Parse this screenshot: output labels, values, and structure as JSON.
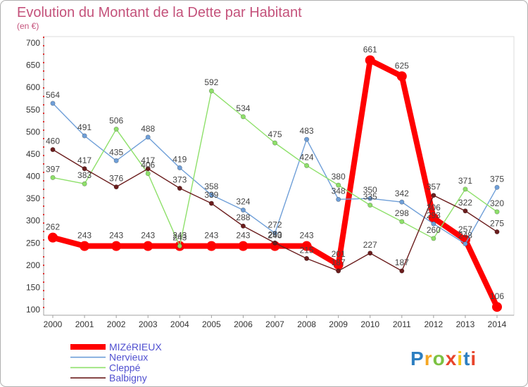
{
  "chart_data": {
    "type": "line",
    "title": "Evolution du Montant de la Dette par Habitant",
    "subtitle": "(en €)",
    "x": [
      "2000",
      "2001",
      "2002",
      "2003",
      "2004",
      "2005",
      "2006",
      "2007",
      "2008",
      "2009",
      "2010",
      "2011",
      "2012",
      "2013",
      "2014"
    ],
    "ylim": [
      100,
      700
    ],
    "yticks": [
      700,
      650,
      600,
      550,
      500,
      450,
      400,
      350,
      300,
      250,
      200,
      150,
      100
    ],
    "grid": false,
    "legend_position": "bottom-left",
    "series": [
      {
        "name": "MIZéRIEUX",
        "color": "#ff0000",
        "values": [
          262,
          243,
          243,
          243,
          243,
          243,
          243,
          243,
          243,
          201,
          661,
          625,
          306,
          257,
          106
        ]
      },
      {
        "name": "Nervieux",
        "color": "#6f9fd8",
        "values": [
          564,
          491,
          435,
          488,
          419,
          358,
          324,
          272,
          483,
          348,
          350,
          342,
          293,
          248,
          375
        ]
      },
      {
        "name": "Cleppé",
        "color": "#8ee06a",
        "values": [
          397,
          383,
          506,
          406,
          243,
          592,
          534,
          475,
          424,
          380,
          335,
          298,
          260,
          371,
          320
        ]
      },
      {
        "name": "Balbigny",
        "color": "#6b1d1d",
        "values": [
          460,
          417,
          376,
          417,
          373,
          339,
          288,
          250,
          215,
          187,
          227,
          187,
          357,
          322,
          275
        ]
      }
    ]
  },
  "logo": {
    "text": "Proxiti",
    "letter_colors": [
      "#2d7fc1",
      "#f5a623",
      "#7cc242",
      "#e8452c",
      "#f5c518",
      "#2d7fc1",
      "#e8452c"
    ]
  }
}
